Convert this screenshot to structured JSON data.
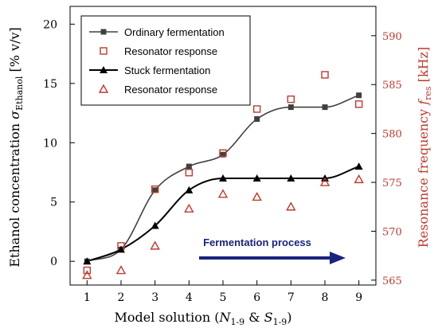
{
  "chart_data": {
    "type": "line",
    "x": [
      1,
      2,
      3,
      4,
      5,
      6,
      7,
      8,
      9
    ],
    "xlim": [
      0.5,
      9.5
    ],
    "ylim_left": [
      -2,
      21.5
    ],
    "ylim_right": [
      564.5,
      593
    ],
    "xticks": [
      "1",
      "2",
      "3",
      "4",
      "5",
      "6",
      "7",
      "8",
      "9"
    ],
    "yticks_left": [
      "0",
      "5",
      "10",
      "15",
      "20"
    ],
    "yticks_right": [
      "565",
      "570",
      "575",
      "580",
      "585",
      "590"
    ],
    "xlabel": {
      "prefix": "Model solution (",
      "n_sym": "N",
      "n_sub": "1-9",
      "amp": " & ",
      "s_sym": "S",
      "s_sub": "1-9",
      "suffix": ")"
    },
    "ylabel_left": {
      "text": "Ethanol concentration ",
      "sym": "σ",
      "sub": "Ethanol",
      "unit": " [% v/v]"
    },
    "ylabel_right": {
      "text": "Resonance frequency ",
      "sym": "f",
      "sub": "res",
      "unit": " [kHz]"
    },
    "series": [
      {
        "name": "Ordinary fermentation",
        "axis": "left",
        "marker": "square",
        "color": "#404040",
        "line": "fit",
        "values": [
          0,
          1,
          6,
          8,
          9,
          12,
          13,
          13,
          14
        ]
      },
      {
        "name": "Resonator response",
        "axis": "right",
        "marker": "open-square",
        "color": "#c0392b",
        "line": "none",
        "values": [
          566,
          568.5,
          574.3,
          576.0,
          578.0,
          582.5,
          583.5,
          586.0,
          583.0
        ]
      },
      {
        "name": "Stuck fermentation",
        "axis": "left",
        "marker": "triangle",
        "color": "#000000",
        "line": "fit",
        "values": [
          0,
          1,
          3,
          6,
          7,
          7,
          7,
          7,
          8
        ]
      },
      {
        "name": "Resonator response",
        "axis": "right",
        "marker": "open-triangle",
        "color": "#c0392b",
        "line": "none",
        "values": [
          565.5,
          566.0,
          568.5,
          572.3,
          573.8,
          573.5,
          572.5,
          575.0,
          575.3
        ]
      }
    ],
    "legend_position": "top-left",
    "annotation": "Fermentation process",
    "annotation_color": "#1a237e",
    "right_axis_color": "#c0392b",
    "grid": false
  }
}
